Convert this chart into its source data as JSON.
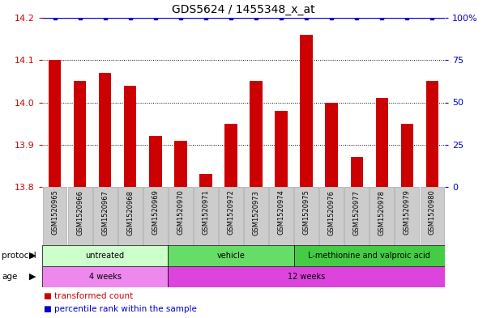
{
  "title": "GDS5624 / 1455348_x_at",
  "samples": [
    "GSM1520965",
    "GSM1520966",
    "GSM1520967",
    "GSM1520968",
    "GSM1520969",
    "GSM1520970",
    "GSM1520971",
    "GSM1520972",
    "GSM1520973",
    "GSM1520974",
    "GSM1520975",
    "GSM1520976",
    "GSM1520977",
    "GSM1520978",
    "GSM1520979",
    "GSM1520980"
  ],
  "transformed_count": [
    14.1,
    14.05,
    14.07,
    14.04,
    13.92,
    13.91,
    13.83,
    13.95,
    14.05,
    13.98,
    14.16,
    14.0,
    13.87,
    14.01,
    13.95,
    14.05
  ],
  "percentile_rank": [
    100,
    100,
    100,
    100,
    100,
    100,
    100,
    100,
    100,
    100,
    100,
    100,
    100,
    100,
    100,
    100
  ],
  "ylim_left": [
    13.8,
    14.2
  ],
  "ylim_right": [
    0,
    100
  ],
  "yticks_left": [
    13.8,
    13.9,
    14.0,
    14.1,
    14.2
  ],
  "yticks_right": [
    0,
    25,
    50,
    75,
    100
  ],
  "bar_color": "#cc0000",
  "dot_color": "#0000cc",
  "protocol_spans": [
    {
      "label": "untreated",
      "start": 0,
      "end": 5,
      "color": "#ccffcc"
    },
    {
      "label": "vehicle",
      "start": 5,
      "end": 10,
      "color": "#66dd66"
    },
    {
      "label": "L-methionine and valproic acid",
      "start": 10,
      "end": 16,
      "color": "#44cc44"
    }
  ],
  "age_spans": [
    {
      "label": "4 weeks",
      "start": 0,
      "end": 5,
      "color": "#ee88ee"
    },
    {
      "label": "12 weeks",
      "start": 5,
      "end": 16,
      "color": "#dd44dd"
    }
  ],
  "label_box_color": "#cccccc",
  "label_box_edge": "#aaaaaa",
  "legend_bar_label": "transformed count",
  "legend_dot_label": "percentile rank within the sample",
  "grid_dotted_at": [
    13.9,
    14.0,
    14.1
  ],
  "top_line_color": "#0000cc"
}
